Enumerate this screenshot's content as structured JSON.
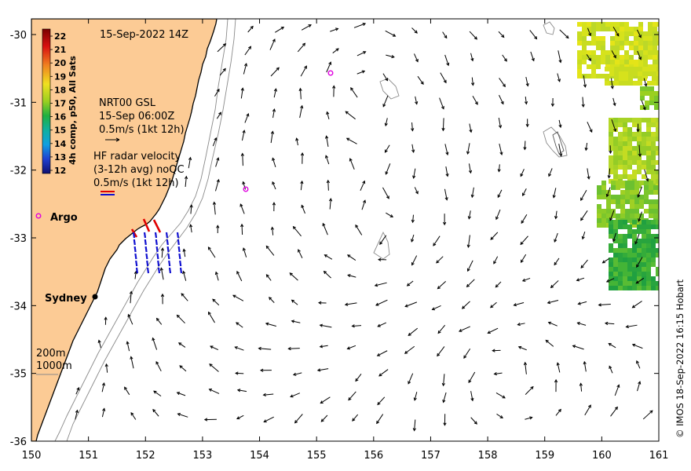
{
  "map": {
    "date_label": "15-Sep-2022 14Z",
    "credit": "© IMOS 18-Sep-2022 16:15 Hobart",
    "lon_ticks": [
      "150",
      "151",
      "152",
      "153",
      "154",
      "155",
      "156",
      "157",
      "158",
      "159",
      "160",
      "161"
    ],
    "lat_ticks": [
      "-30",
      "-31",
      "-32",
      "-33",
      "-34",
      "-35",
      "-36"
    ],
    "colorbar": {
      "title": "4h comp, p50, All Sats",
      "ticks": [
        "22",
        "21",
        "20",
        "19",
        "18",
        "17",
        "16",
        "15",
        "14",
        "13",
        "12"
      ],
      "range": [
        12,
        22
      ]
    },
    "legend": {
      "gsl_line1": "NRT00 GSL",
      "gsl_line2": "15-Sep 06:00Z",
      "gsl_line3": "0.5m/s (1kt 12h)",
      "hf_line1": "HF radar velocity",
      "hf_line2": "(3-12h avg) noQC",
      "hf_line3": "0.5m/s (1kt 12h)"
    },
    "places": {
      "argo": "Argo",
      "sydney": "Sydney"
    },
    "isobaths": {
      "shallow": "200m",
      "deep": "1000m"
    },
    "colors": {
      "land": "#fccb95",
      "argo_marker": "#e000e0",
      "hf_red": "#e00000",
      "hf_blue": "#1010d0",
      "sst_warm": "#d8e020",
      "sst_cool": "#1aa03a"
    }
  }
}
